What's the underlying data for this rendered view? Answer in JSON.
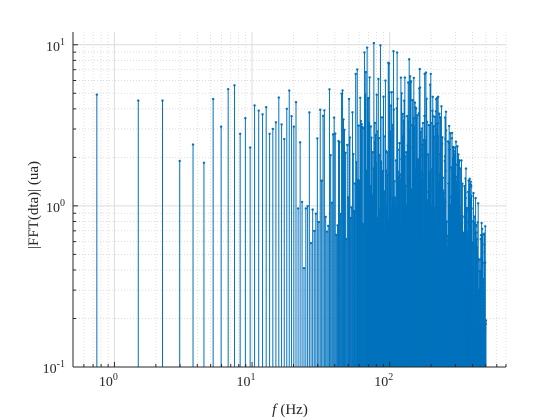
{
  "chart_data": {
    "type": "stem",
    "xlabel_symbol": "f",
    "xlabel_unit": "(Hz)",
    "ylabel": "|FFT(dta)| (ua)",
    "xscale": "log",
    "yscale": "log",
    "xlim": [
      0.5,
      700
    ],
    "ylim": [
      0.1,
      12
    ],
    "x_ticks": [
      {
        "base": "10",
        "exp": "0",
        "value": 1
      },
      {
        "base": "10",
        "exp": "1",
        "value": 10
      },
      {
        "base": "10",
        "exp": "2",
        "value": 100
      }
    ],
    "y_ticks": [
      {
        "base": "10",
        "exp": "-1",
        "value": 0.1
      },
      {
        "base": "10",
        "exp": "0",
        "value": 1
      },
      {
        "base": "10",
        "exp": "1",
        "value": 10
      }
    ],
    "grid": true,
    "minor_grid": true,
    "series_color": "#0072BD",
    "frequency_step": 0.745,
    "frequency_max": 500,
    "values_low_bins": [
      4.9,
      4.5,
      4.5,
      1.9,
      2.4,
      1.85,
      4.6,
      3.1,
      5.3,
      5.6,
      2.8,
      3.5,
      2.3,
      4.2,
      3.9,
      3.7,
      4.1,
      2.8,
      3.0,
      3.3,
      4.7,
      3.2,
      2.6,
      4.0,
      5.2,
      3.6,
      3.1,
      4.4
    ]
  }
}
